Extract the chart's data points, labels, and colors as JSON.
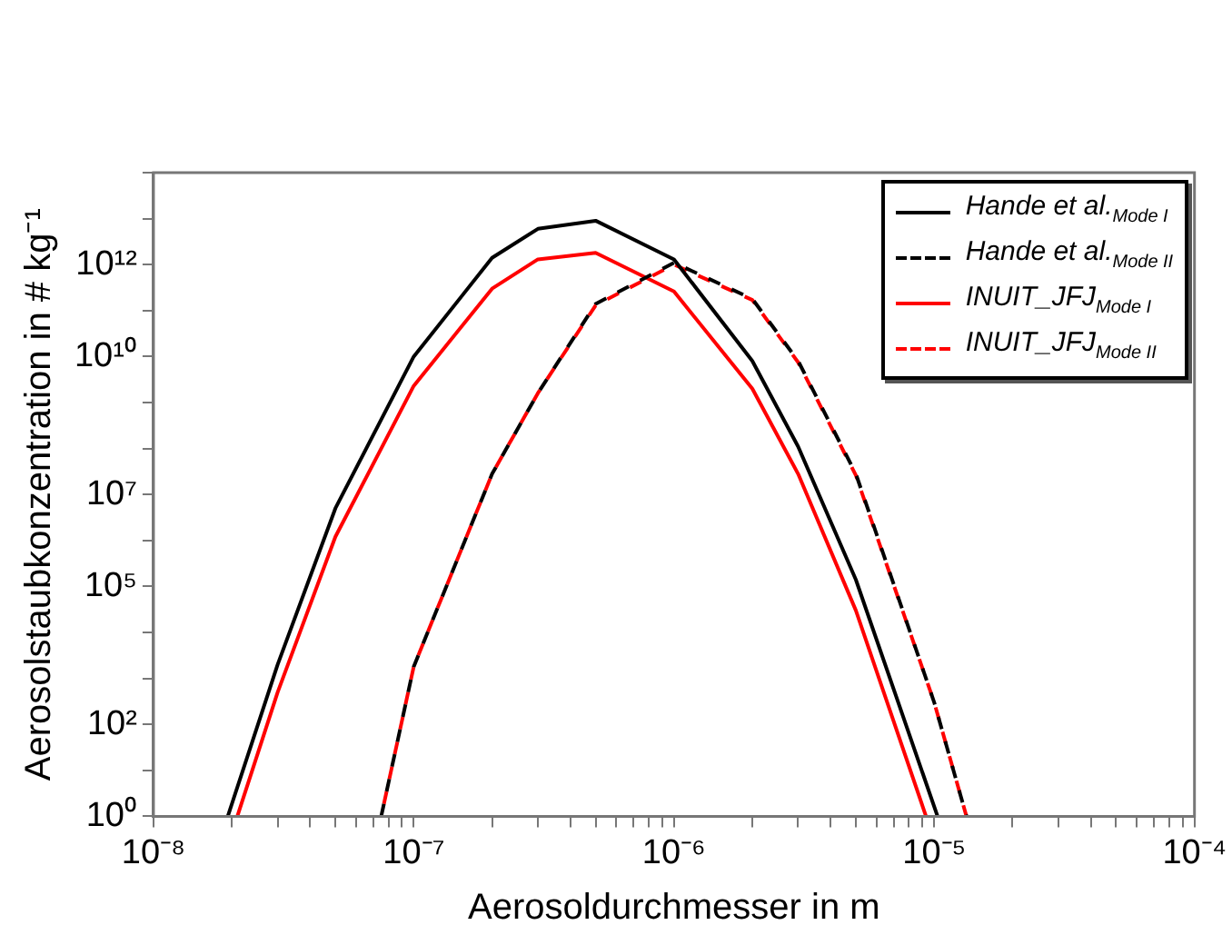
{
  "chart_data": {
    "type": "line",
    "xlabel": "Aerosoldurchmesser in m",
    "ylabel": "Aerosolstaubkonzentration in # kg⁻¹",
    "log": "xy",
    "grid": false,
    "legend": "top right",
    "marker": "none",
    "xlim": [
      1e-08,
      0.0001
    ],
    "ylim": [
      1,
      100000000000000.0
    ],
    "xticks": [
      {
        "value": 1e-08,
        "label": "10⁻⁸"
      },
      {
        "value": 2e-08,
        "label": null
      },
      {
        "value": 3e-08,
        "label": null
      },
      {
        "value": 4e-08,
        "label": null
      },
      {
        "value": 5e-08,
        "label": null
      },
      {
        "value": 6e-08,
        "label": null
      },
      {
        "value": 7e-08,
        "label": null
      },
      {
        "value": 8e-08,
        "label": null
      },
      {
        "value": 9e-08,
        "label": null
      },
      {
        "value": 1e-07,
        "label": "10⁻⁷"
      },
      {
        "value": 2e-07,
        "label": null
      },
      {
        "value": 3e-07,
        "label": null
      },
      {
        "value": 4e-07,
        "label": null
      },
      {
        "value": 5e-07,
        "label": null
      },
      {
        "value": 6e-07,
        "label": null
      },
      {
        "value": 7e-07,
        "label": null
      },
      {
        "value": 8e-07,
        "label": null
      },
      {
        "value": 9e-07,
        "label": null
      },
      {
        "value": 1e-06,
        "label": "10⁻⁶"
      },
      {
        "value": 2e-06,
        "label": null
      },
      {
        "value": 3e-06,
        "label": null
      },
      {
        "value": 4e-06,
        "label": null
      },
      {
        "value": 5e-06,
        "label": null
      },
      {
        "value": 6e-06,
        "label": null
      },
      {
        "value": 7e-06,
        "label": null
      },
      {
        "value": 8e-06,
        "label": null
      },
      {
        "value": 9e-06,
        "label": null
      },
      {
        "value": 1e-05,
        "label": "10⁻⁵"
      },
      {
        "value": 2e-05,
        "label": null
      },
      {
        "value": 3e-05,
        "label": null
      },
      {
        "value": 4e-05,
        "label": null
      },
      {
        "value": 5e-05,
        "label": null
      },
      {
        "value": 6e-05,
        "label": null
      },
      {
        "value": 7e-05,
        "label": null
      },
      {
        "value": 8e-05,
        "label": null
      },
      {
        "value": 9e-05,
        "label": null
      },
      {
        "value": 0.0001,
        "label": "10⁻⁴"
      }
    ],
    "yticks": [
      {
        "value": 1,
        "label": "10⁰"
      },
      {
        "value": 10.0,
        "label": null
      },
      {
        "value": 100.0,
        "label": "10²"
      },
      {
        "value": 1000.0,
        "label": null
      },
      {
        "value": 10000.0,
        "label": null
      },
      {
        "value": 100000.0,
        "label": "10⁵"
      },
      {
        "value": 1000000.0,
        "label": null
      },
      {
        "value": 10000000.0,
        "label": "10⁷"
      },
      {
        "value": 100000000.0,
        "label": null
      },
      {
        "value": 1000000000.0,
        "label": null
      },
      {
        "value": 10000000000.0,
        "label": "10¹⁰"
      },
      {
        "value": 100000000000.0,
        "label": null
      },
      {
        "value": 1000000000000.0,
        "label": "10¹²"
      },
      {
        "value": 10000000000000.0,
        "label": null
      },
      {
        "value": 100000000000000.0,
        "label": null
      }
    ],
    "series": [
      {
        "name": "Hande et al.$_{Mode I}$",
        "color": "#000000",
        "line_style": "solid",
        "x": [
          1.93e-08,
          3e-08,
          5e-08,
          1e-07,
          2e-07,
          3e-07,
          5e-07,
          1e-06,
          2e-06,
          3e-06,
          5e-06,
          1.03e-05
        ],
        "values": [
          1,
          2000.0,
          5000000.0,
          10000000000.0,
          1400000000000.0,
          6000000000000.0,
          9000000000000.0,
          1300000000000.0,
          8000000000.0,
          110000000.0,
          140000.0,
          1
        ]
      },
      {
        "name": "Hande et al.$_{Mode II}$",
        "color": "#000000",
        "line_style": "dashed",
        "x": [
          7.5e-08,
          1e-07,
          2e-07,
          3e-07,
          5e-07,
          1e-06,
          2e-06,
          3e-06,
          5e-06,
          1e-05,
          1.33e-05
        ],
        "values": [
          1,
          1800.0,
          28000000.0,
          1600000000.0,
          140000000000.0,
          1100000000000.0,
          180000000000.0,
          8000000000.0,
          28000000.0,
          300.0,
          1
        ]
      },
      {
        "name": "INUIT_JFJ$_{Mode I}$",
        "color": "#ff0000",
        "line_style": "solid",
        "x": [
          2.1e-08,
          3e-08,
          5e-08,
          1e-07,
          2e-07,
          3e-07,
          5e-07,
          1e-06,
          2e-06,
          3e-06,
          5e-06,
          9.3e-06
        ],
        "values": [
          1,
          500.0,
          1200000.0,
          2300000000.0,
          300000000000.0,
          1300000000000.0,
          1800000000000.0,
          260000000000.0,
          2000000000.0,
          28000000.0,
          30000.0,
          1
        ]
      },
      {
        "name": "INUIT_JFJ$_{Mode II}$",
        "color": "#ff0000",
        "line_style": "dashed",
        "x": [
          7.5e-08,
          1e-07,
          2e-07,
          3e-07,
          5e-07,
          1e-06,
          2e-06,
          3e-06,
          5e-06,
          1e-05,
          1.33e-05
        ],
        "values": [
          1,
          1800.0,
          28000000.0,
          1600000000.0,
          130000000000.0,
          1000000000000.0,
          170000000000.0,
          7500000000.0,
          26000000.0,
          300.0,
          1
        ]
      }
    ]
  }
}
